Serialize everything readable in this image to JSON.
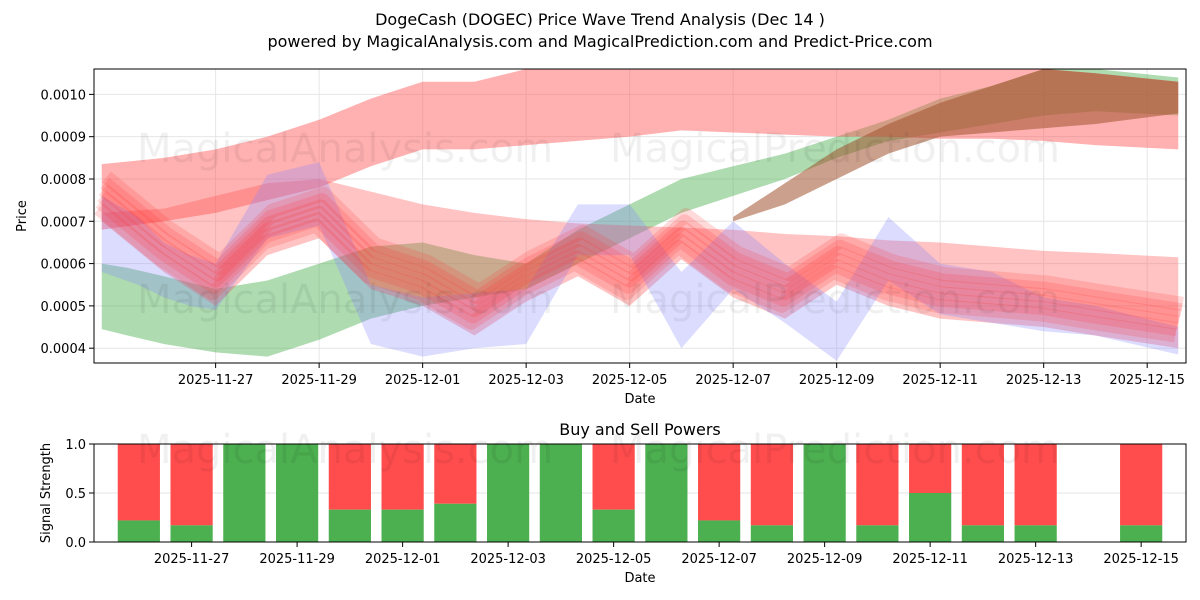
{
  "chart_data": [
    {
      "type": "area",
      "title": "DogeCash (DOGEC) Price Wave Trend Analysis (Dec 14 )",
      "subtitle": "powered by MagicalAnalysis.com and MagicalPrediction.com and Predict-Price.com",
      "watermarks": [
        "MagicalAnalysis.com",
        "MagicalPrediction.com"
      ],
      "xlabel": "Date",
      "ylabel": "Price",
      "x_ticks": [
        "2025-11-27",
        "2025-11-29",
        "2025-12-01",
        "2025-12-03",
        "2025-12-05",
        "2025-12-07",
        "2025-12-09",
        "2025-12-11",
        "2025-12-13",
        "2025-12-15"
      ],
      "x_tick_day": [
        2,
        4,
        6,
        8,
        10,
        12,
        14,
        16,
        18,
        20
      ],
      "y_ticks": [
        "0.0004",
        "0.0005",
        "0.0006",
        "0.0007",
        "0.0008",
        "0.0009",
        "0.0010"
      ],
      "y_tick_values": [
        0.0004,
        0.0005,
        0.0006,
        0.0007,
        0.0008,
        0.0009,
        0.001
      ],
      "xlim": [
        -0.35,
        20.75
      ],
      "ylim": [
        0.000365,
        0.00106
      ],
      "grid": true,
      "bands": [
        {
          "name": "green-trend",
          "color": "#4caf50",
          "opacity": 0.45,
          "x": [
            -0.2,
            0.3,
            1,
            2,
            3,
            4,
            5,
            6,
            7,
            8,
            9,
            10,
            11,
            12,
            13,
            14,
            15,
            16,
            17,
            18,
            19,
            20.6
          ],
          "upper": [
            0.0006,
            0.00059,
            0.00057,
            0.00054,
            0.00056,
            0.0006,
            0.00064,
            0.00065,
            0.00062,
            0.0006,
            0.00068,
            0.00074,
            0.0008,
            0.00083,
            0.00086,
            0.0009,
            0.00094,
            0.00099,
            0.00102,
            0.00106,
            0.00106,
            0.00104
          ],
          "lower": [
            0.000445,
            0.00043,
            0.00041,
            0.00039,
            0.00038,
            0.00042,
            0.00047,
            0.0005,
            0.00052,
            0.00054,
            0.0006,
            0.00066,
            0.00072,
            0.00076,
            0.0008,
            0.00085,
            0.00089,
            0.00091,
            0.00093,
            0.00095,
            0.00096,
            0.00095
          ]
        },
        {
          "name": "red-upper-trend",
          "color": "#ff5252",
          "opacity": 0.45,
          "x": [
            -0.2,
            1,
            2,
            3,
            4,
            5,
            6,
            7,
            8,
            9,
            10,
            11,
            12,
            13,
            14,
            15,
            16,
            17,
            18,
            19,
            20.6
          ],
          "upper": [
            0.000835,
            0.00085,
            0.00087,
            0.0009,
            0.00094,
            0.00099,
            0.00103,
            0.00103,
            0.00106,
            0.00106,
            0.00106,
            0.00106,
            0.00106,
            0.00106,
            0.00106,
            0.00106,
            0.00106,
            0.00106,
            0.00106,
            0.00105,
            0.00103
          ],
          "lower": [
            0.00068,
            0.0007,
            0.00072,
            0.00075,
            0.00078,
            0.00083,
            0.00087,
            0.00087,
            0.00088,
            0.00089,
            0.0009,
            0.000915,
            0.00091,
            0.000905,
            0.0009,
            0.0009,
            0.000895,
            0.000895,
            0.00089,
            0.00088,
            0.00087
          ]
        },
        {
          "name": "brown-overlap",
          "color": "#a0522d",
          "opacity": 0.55,
          "x": [
            12,
            13,
            14,
            15,
            16,
            17,
            18,
            19,
            20.6
          ],
          "upper": [
            0.00071,
            0.00079,
            0.00087,
            0.00093,
            0.00098,
            0.00102,
            0.00106,
            0.00105,
            0.00103
          ],
          "lower": [
            0.0007,
            0.00074,
            0.0008,
            0.00086,
            0.0009,
            0.00091,
            0.00092,
            0.00093,
            0.000955
          ]
        },
        {
          "name": "red-lower-trend",
          "color": "#ff5252",
          "opacity": 0.35,
          "x": [
            -0.2,
            1,
            2,
            3,
            4,
            5,
            6,
            7,
            8,
            9,
            10,
            11,
            12,
            13,
            14,
            15,
            16,
            17,
            18,
            19,
            20.6
          ],
          "upper": [
            0.00072,
            0.00073,
            0.00076,
            0.00079,
            0.0008,
            0.00077,
            0.00074,
            0.00072,
            0.000705,
            0.000695,
            0.00069,
            0.000685,
            0.00068,
            0.00067,
            0.000665,
            0.000655,
            0.00065,
            0.00064,
            0.00063,
            0.000625,
            0.000615
          ]
        },
        {
          "name": "blue-wave",
          "color": "#8080ff",
          "opacity": 0.28,
          "x": [
            -0.2,
            0.5,
            1,
            1.5,
            2,
            3,
            4,
            5,
            6,
            7,
            8,
            9,
            10,
            11,
            12,
            13,
            14,
            15,
            16,
            17,
            18,
            19,
            20.6
          ],
          "upper": [
            0.00076,
            0.00071,
            0.00065,
            0.00062,
            0.0006,
            0.00081,
            0.00084,
            0.00055,
            0.00052,
            0.00053,
            0.00054,
            0.00074,
            0.00074,
            0.00058,
            0.0007,
            0.0006,
            0.00051,
            0.00071,
            0.0006,
            0.00058,
            0.00052,
            0.0005,
            0.00045
          ],
          "lower": [
            0.00058,
            0.00055,
            0.00052,
            0.0005,
            0.00049,
            0.00066,
            0.00069,
            0.00041,
            0.00038,
            0.0004,
            0.00041,
            0.00062,
            0.00062,
            0.0004,
            0.00054,
            0.00046,
            0.00037,
            0.00056,
            0.00048,
            0.00046,
            0.00044,
            0.00043,
            0.000385
          ]
        }
      ],
      "wave_lines": {
        "name": "red-wave-ensemble",
        "color": "#ff3333",
        "x": [
          -0.2,
          1,
          2,
          3,
          4,
          5,
          6,
          7,
          8,
          9,
          10,
          11,
          12,
          13,
          14,
          15,
          16,
          17,
          18,
          19,
          20.6
        ],
        "base": [
          0.00076,
          0.00064,
          0.00056,
          0.00068,
          0.00072,
          0.0006,
          0.00056,
          0.00049,
          0.00057,
          0.00063,
          0.00056,
          0.00067,
          0.00058,
          0.00053,
          0.00061,
          0.00056,
          0.00053,
          0.00052,
          0.00051,
          0.00049,
          0.00046
        ],
        "offsets": [
          -3e-05,
          -1.5e-05,
          0,
          1.5e-05,
          3e-05,
          4.5e-05
        ]
      }
    },
    {
      "type": "bar",
      "title": "Buy and Sell Powers",
      "xlabel": "Date",
      "ylabel": "Signal Strength",
      "x_ticks": [
        "2025-11-27",
        "2025-11-29",
        "2025-12-01",
        "2025-12-03",
        "2025-12-05",
        "2025-12-07",
        "2025-12-09",
        "2025-12-11",
        "2025-12-13",
        "2025-12-15"
      ],
      "x_tick_day": [
        2,
        4,
        6,
        8,
        10,
        12,
        14,
        16,
        18,
        20
      ],
      "y_ticks": [
        "0.0",
        "0.5",
        "1.0"
      ],
      "y_tick_values": [
        0,
        0.5,
        1.0
      ],
      "xlim": [
        0.15,
        20.85
      ],
      "ylim": [
        0,
        1.0
      ],
      "days": [
        1,
        2,
        3,
        4,
        5,
        6,
        7,
        8,
        9,
        10,
        11,
        12,
        13,
        14,
        15,
        16,
        17,
        18,
        20
      ],
      "buy": [
        0.22,
        0.17,
        1.0,
        1.0,
        0.33,
        0.33,
        0.39,
        1.0,
        1.0,
        0.33,
        1.0,
        0.22,
        0.17,
        1.0,
        0.17,
        0.5,
        0.17,
        0.17,
        0.17
      ],
      "buy_color": "#4caf50",
      "sell_color": "#ff4d4d"
    }
  ]
}
